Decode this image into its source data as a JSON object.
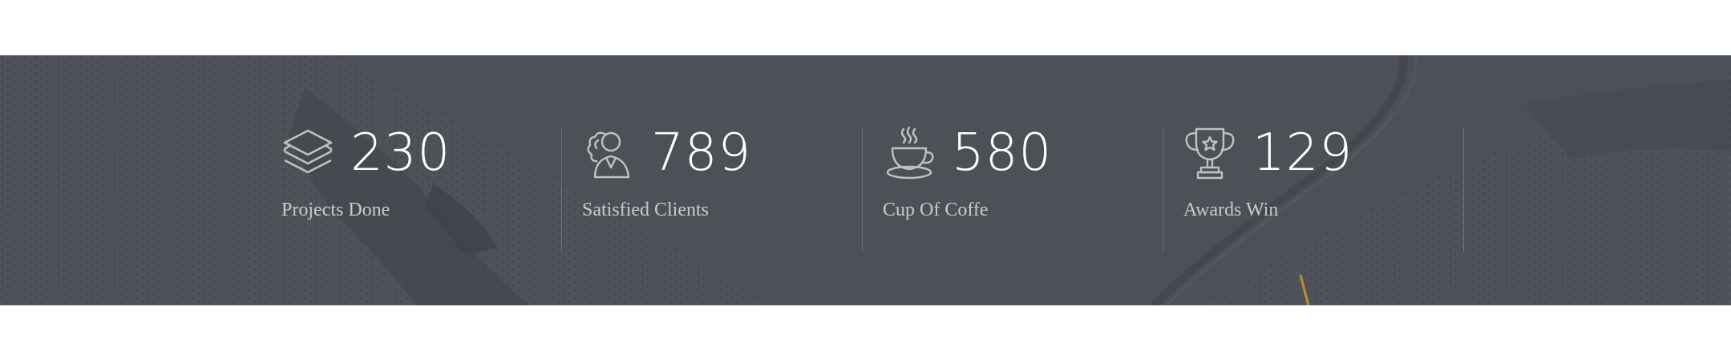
{
  "colors": {
    "band_overlay": "#4b4f56",
    "number_text": "#ffffff",
    "label_text": "#c9cbce",
    "icon_stroke": "#bfc1c4"
  },
  "stats": [
    {
      "icon": "layers-icon",
      "value": "230",
      "label": "Projects Done"
    },
    {
      "icon": "clients-icon",
      "value": "789",
      "label": "Satisfied Clients"
    },
    {
      "icon": "coffee-cup-icon",
      "value": "580",
      "label": "Cup Of Coffe"
    },
    {
      "icon": "trophy-icon",
      "value": "129",
      "label": "Awards Win"
    }
  ]
}
